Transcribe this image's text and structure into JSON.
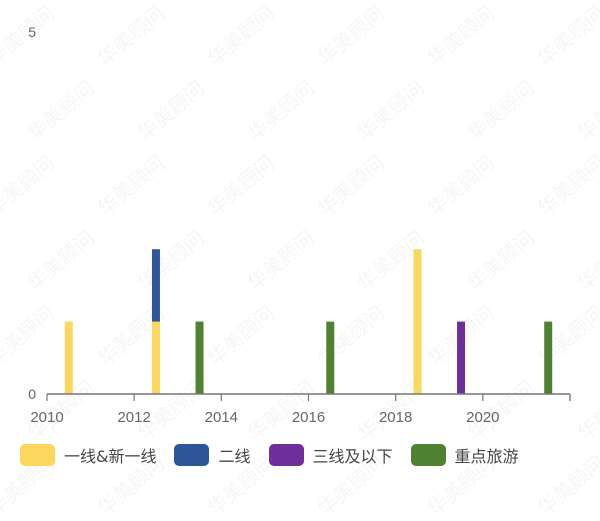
{
  "watermark": "华美顾问",
  "chart_data": {
    "type": "bar",
    "stacked": true,
    "title": "",
    "xlabel": "",
    "ylabel": "",
    "xlim": [
      2010,
      2022
    ],
    "ylim": [
      0,
      5
    ],
    "x_ticks": [
      "2010",
      "2012",
      "2014",
      "2016",
      "2018",
      "2020"
    ],
    "y_ticks": [
      "0",
      "5"
    ],
    "grid": false,
    "legend_position": "bottom",
    "series": [
      {
        "name": "一线&新一线",
        "color": "#FBD85D",
        "points": [
          {
            "x": 2010,
            "y": 1
          },
          {
            "x": 2012,
            "y": 1
          },
          {
            "x": 2018,
            "y": 2
          }
        ]
      },
      {
        "name": "二线",
        "color": "#2C5699",
        "points": [
          {
            "x": 2012,
            "y": 1
          }
        ]
      },
      {
        "name": "三线及以下",
        "color": "#6E2F9C",
        "points": [
          {
            "x": 2019,
            "y": 1
          }
        ]
      },
      {
        "name": "重点旅游",
        "color": "#4F8230",
        "points": [
          {
            "x": 2013,
            "y": 1
          },
          {
            "x": 2016,
            "y": 1
          },
          {
            "x": 2021,
            "y": 1
          }
        ]
      }
    ]
  }
}
